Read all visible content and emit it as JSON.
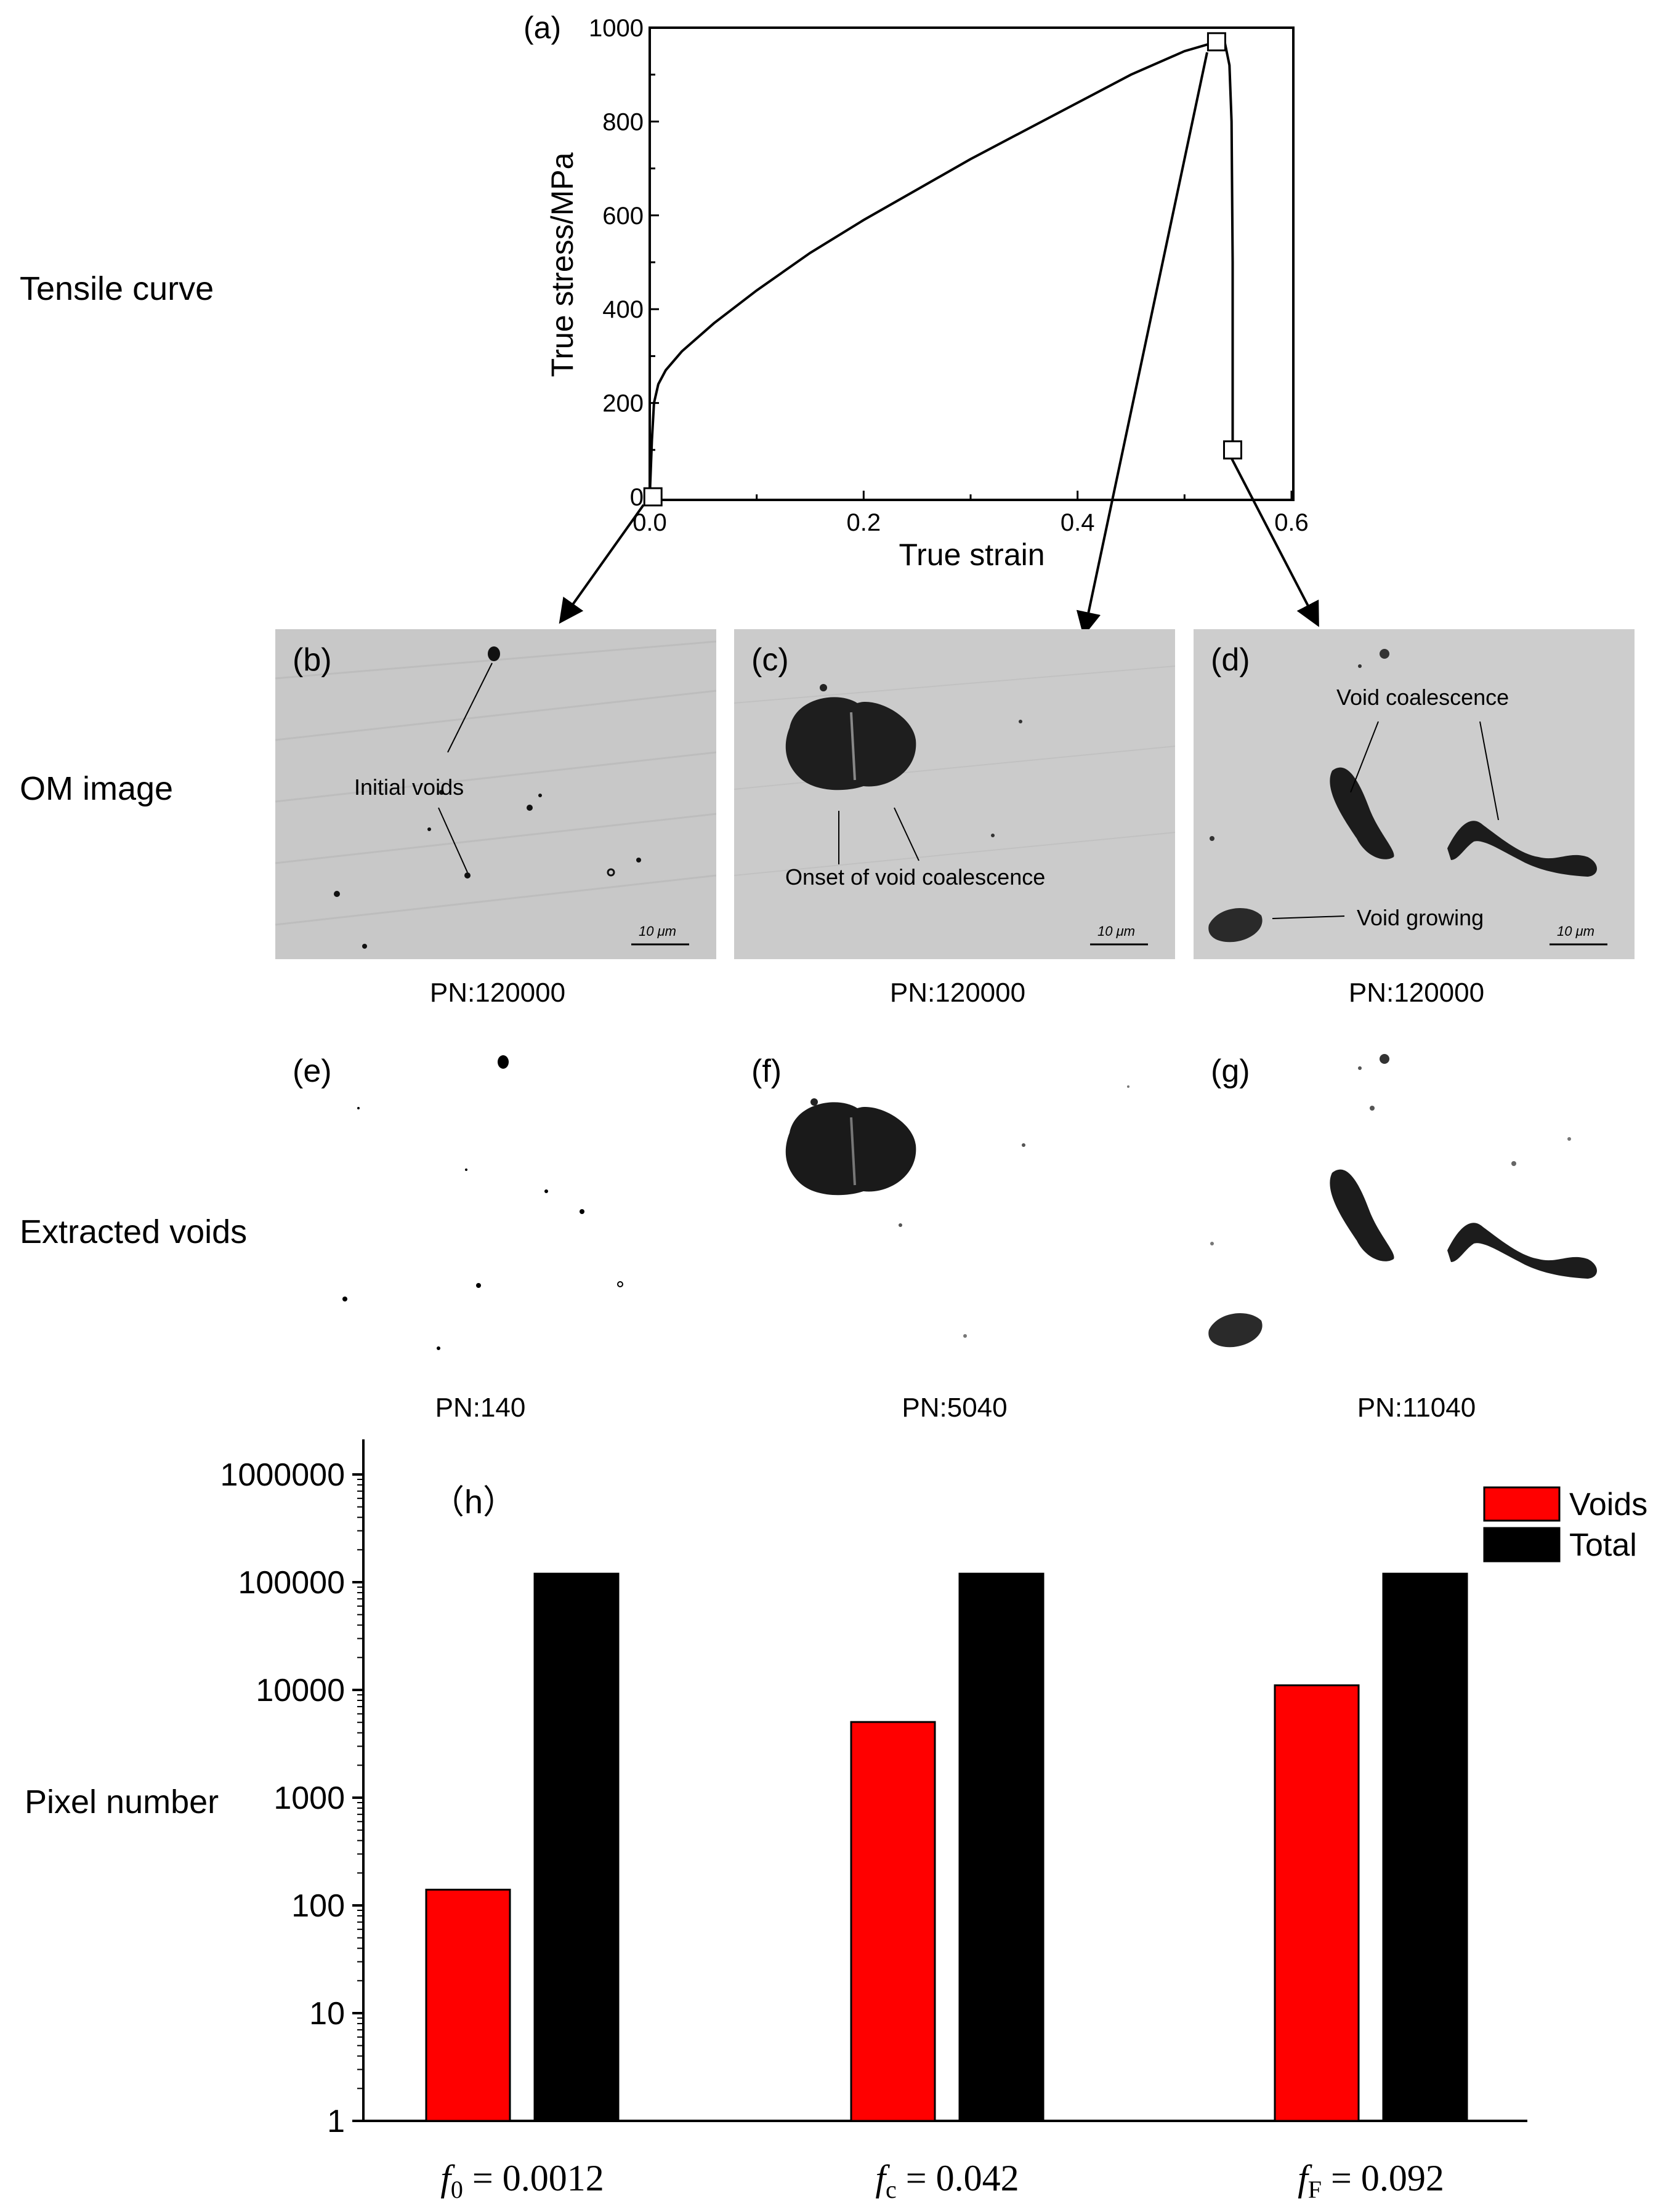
{
  "row_labels": {
    "tensile": "Tensile curve",
    "om": "OM image",
    "extracted": "Extracted voids"
  },
  "panels": {
    "a": "(a)",
    "b": "(b)",
    "c": "(c)",
    "d": "(d)",
    "e": "(e)",
    "f": "(f)",
    "g": "(g)",
    "h": "（h）"
  },
  "annotations": {
    "initial_voids": "Initial voids",
    "onset": "Onset of void coalescence",
    "void_coalescence": "Void coalescence",
    "void_growing": "Void growing",
    "scale_bar": "10 μm"
  },
  "om_pn": [
    "PN:120000",
    "PN:120000",
    "PN:120000"
  ],
  "extracted_pn": [
    "PN:140",
    "PN:5040",
    "PN:11040"
  ],
  "chart_data": [
    {
      "type": "line",
      "xlabel": "True strain",
      "ylabel": "True stress/MPa",
      "xlim": [
        0.0,
        0.6
      ],
      "ylim": [
        0,
        1000
      ],
      "xticks": [
        "0.0",
        "0.2",
        "0.4",
        "0.6"
      ],
      "yticks": [
        "0",
        "200",
        "400",
        "600",
        "800",
        "1000"
      ],
      "series": [
        {
          "x": [
            0,
            0.002,
            0.004,
            0.008,
            0.015,
            0.03,
            0.06,
            0.1,
            0.15,
            0.2,
            0.25,
            0.3,
            0.35,
            0.4,
            0.45,
            0.5,
            0.53,
            0.538,
            0.542,
            0.544,
            0.545,
            0.545
          ],
          "y": [
            0,
            120,
            200,
            240,
            270,
            310,
            370,
            440,
            520,
            590,
            655,
            720,
            780,
            840,
            900,
            950,
            970,
            965,
            920,
            800,
            500,
            100
          ]
        }
      ],
      "markers": [
        {
          "x": 0.003,
          "y": 0
        },
        {
          "x": 0.53,
          "y": 970
        },
        {
          "x": 0.545,
          "y": 100
        }
      ]
    },
    {
      "type": "bar",
      "scale": "log",
      "ylabel": "Pixel number",
      "ylim": [
        1,
        1000000
      ],
      "yticks": [
        "1",
        "10",
        "100",
        "1000",
        "10000",
        "100000",
        "1000000"
      ],
      "categories": [
        "f0 = 0.0012",
        "fc = 0.042",
        "fF = 0.092"
      ],
      "category_labels": [
        {
          "sym": "f",
          "sub": "0",
          "rest": " = 0.0012"
        },
        {
          "sym": "f",
          "sub": "c",
          "rest": " = 0.042"
        },
        {
          "sym": "f",
          "sub": "F",
          "rest": " = 0.092"
        }
      ],
      "series": [
        {
          "name": "Voids",
          "color": "#ff0000",
          "values": [
            140,
            5040,
            11040
          ]
        },
        {
          "name": "Total",
          "color": "#000000",
          "values": [
            120000,
            120000,
            120000
          ]
        }
      ],
      "legend": "top-right"
    }
  ]
}
